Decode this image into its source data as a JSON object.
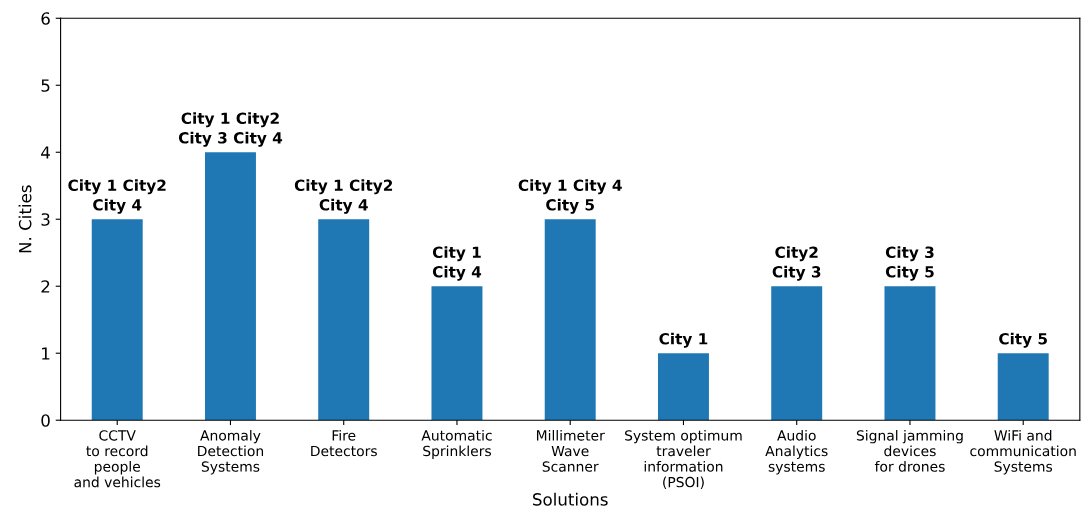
{
  "chart_data": {
    "type": "bar",
    "xlabel": "Solutions",
    "ylabel": "N. Cities",
    "categories": [
      "CCTV\nto record\npeople\nand vehicles",
      "Anomaly\nDetection\nSystems",
      "Fire\nDetectors",
      "Automatic\nSprinklers",
      "Millimeter\nWave\nScanner",
      "System optimum\ntraveler\ninformation\n(PSOI)",
      "Audio\nAnalytics\nsystems",
      "Signal jamming\ndevices\nfor drones",
      "WiFi and\ncommunication\nSystems"
    ],
    "values": [
      3,
      4,
      3,
      2,
      3,
      1,
      2,
      2,
      1
    ],
    "value_labels": [
      "City 1 City2\nCity 4",
      "City 1 City2\nCity 3 City 4",
      "City 1 City2\nCity 4",
      "City 1\nCity 4",
      "City 1 City 4\nCity 5",
      "City 1",
      "City2\nCity 3",
      "City 3\nCity 5",
      "City 5"
    ],
    "color": "#1f77b4",
    "ylim": [
      0,
      6
    ],
    "yticks": [
      0,
      1,
      2,
      3,
      4,
      5,
      6
    ],
    "grid": false,
    "legend": false
  }
}
